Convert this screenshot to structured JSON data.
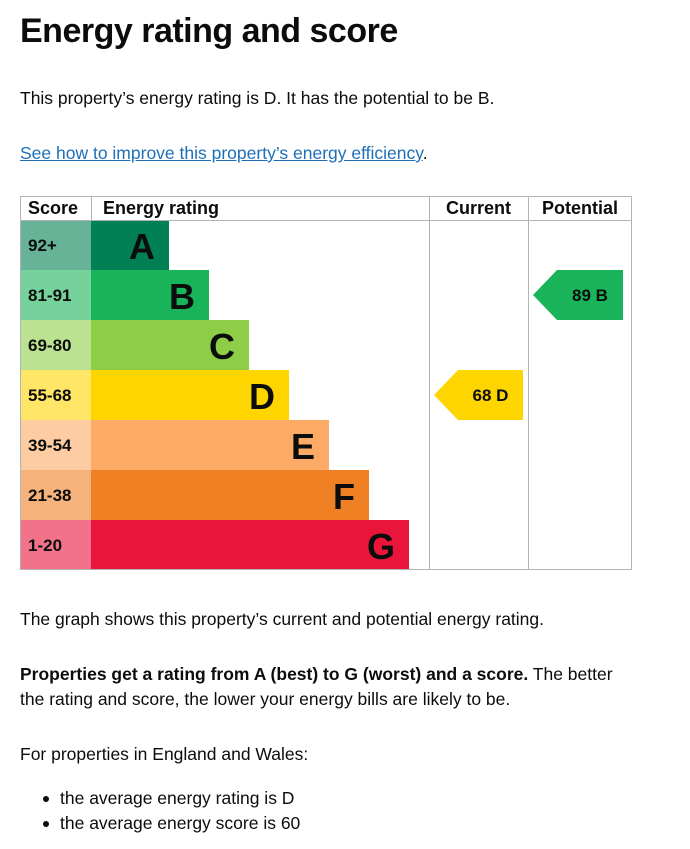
{
  "heading": "Energy rating and score",
  "intro": "This property’s energy rating is D. It has the potential to be B.",
  "improve_link": "See how to improve this property’s energy efficiency",
  "improve_link_trailing": ".",
  "chart_data": {
    "type": "bar",
    "headers": {
      "score": "Score",
      "rating": "Energy rating",
      "current": "Current",
      "potential": "Potential"
    },
    "bands": [
      {
        "score": "92+",
        "letter": "A",
        "color": "#008054",
        "score_bg": "#66b398"
      },
      {
        "score": "81-91",
        "letter": "B",
        "color": "#19b459",
        "score_bg": "#75d29b"
      },
      {
        "score": "69-80",
        "letter": "C",
        "color": "#8dce46",
        "score_bg": "#bbe290"
      },
      {
        "score": "55-68",
        "letter": "D",
        "color": "#ffd500",
        "score_bg": "#ffe666"
      },
      {
        "score": "39-54",
        "letter": "E",
        "color": "#fcaa65",
        "score_bg": "#fdcca3"
      },
      {
        "score": "21-38",
        "letter": "F",
        "color": "#ef8023",
        "score_bg": "#f5b37b"
      },
      {
        "score": "1-20",
        "letter": "G",
        "color": "#e9153b",
        "score_bg": "#f27389"
      }
    ],
    "current": {
      "score": 68,
      "letter": "D",
      "color": "#ffd500",
      "band": "D",
      "text": "68 D"
    },
    "potential": {
      "score": 89,
      "letter": "B",
      "color": "#19b459",
      "band": "B",
      "text": "89 B"
    }
  },
  "graph_note": "The graph shows this property’s current and potential energy rating.",
  "rating_bold": "Properties get a rating from A (best) to G (worst) and a score.",
  "rating_rest_line1": " The better",
  "rating_rest_line2": "the rating and score, the lower your energy bills are likely to be.",
  "ew_intro": "For properties in England and Wales:",
  "averages": [
    "the average energy rating is D",
    "the average energy score is 60"
  ]
}
